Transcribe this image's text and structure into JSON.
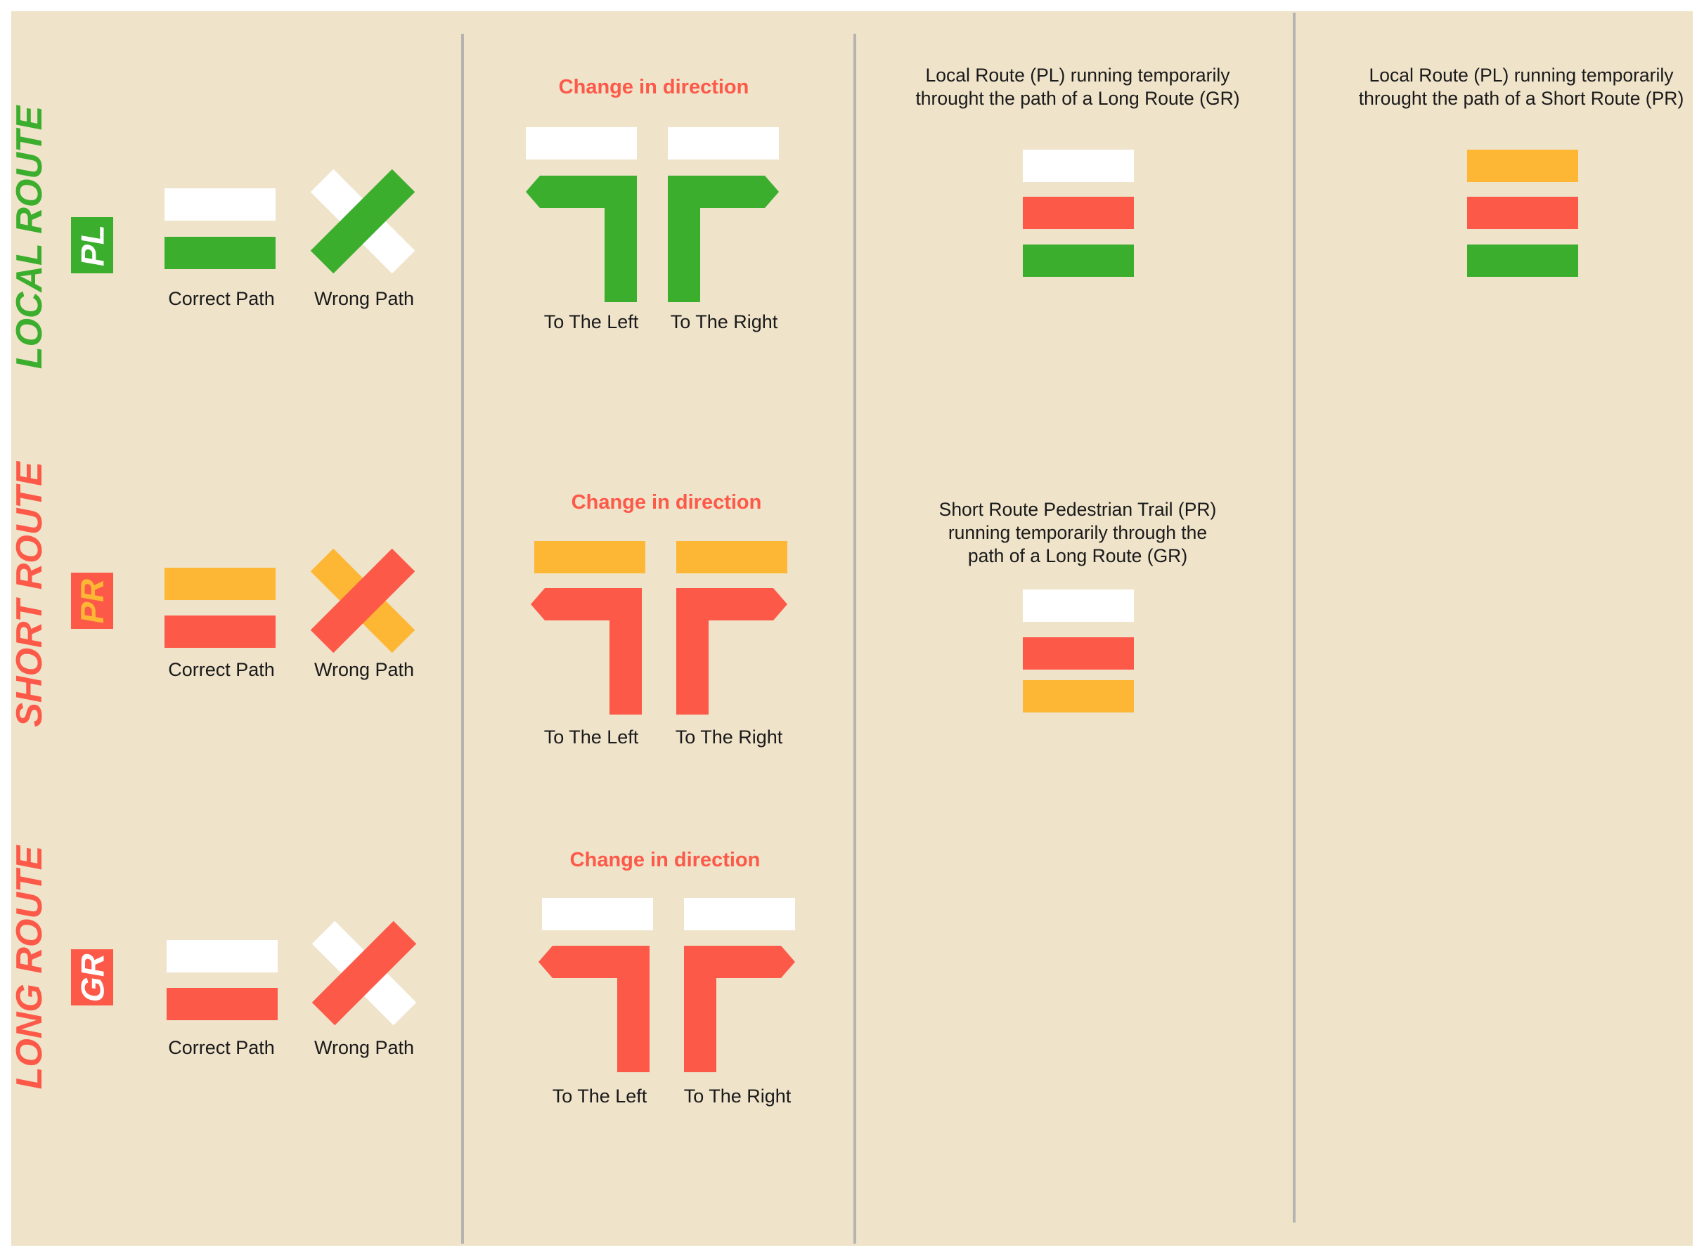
{
  "colors": {
    "background": "#efe3ca",
    "divider": "#b6b3b0",
    "white": "#ffffff",
    "green": "#3cae2e",
    "red": "#fd5949",
    "yellow": "#fdb734",
    "heading_red": "#fd5949"
  },
  "rows": [
    {
      "id": "local",
      "title": "LOCAL ROUTE",
      "title_color": "#3cae2e",
      "badge": "PL",
      "badge_bg": "#3cae2e",
      "badge_text_color": "#ffffff",
      "top_color": "#ffffff",
      "route_color": "#3cae2e",
      "correct_label": "Correct Path",
      "wrong_label": "Wrong Path",
      "direction_heading": "Change in direction",
      "left_label": "To The Left",
      "right_label": "To The Right"
    },
    {
      "id": "short",
      "title": "SHORT ROUTE",
      "title_color": "#fd5949",
      "badge": "PR",
      "badge_bg": "#fd5949",
      "badge_text_color": "#fdb734",
      "top_color": "#fdb734",
      "route_color": "#fd5949",
      "correct_label": "Correct Path",
      "wrong_label": "Wrong Path",
      "direction_heading": "Change in direction",
      "left_label": "To The Left",
      "right_label": "To The Right"
    },
    {
      "id": "long",
      "title": "LONG ROUTE",
      "title_color": "#fd5949",
      "badge": "GR",
      "badge_bg": "#fd5949",
      "badge_text_color": "#ffffff",
      "top_color": "#ffffff",
      "route_color": "#fd5949",
      "correct_label": "Correct Path",
      "wrong_label": "Wrong Path",
      "direction_heading": "Change in direction",
      "left_label": "To The Left",
      "right_label": "To The Right"
    }
  ],
  "combined": [
    {
      "lines": [
        "Local Route (PL) running temporarily",
        "throught the path of a Long Route (GR)"
      ],
      "stripes": [
        "#ffffff",
        "#fd5949",
        "#3cae2e"
      ]
    },
    {
      "lines": [
        "Local Route (PL) running temporarily",
        "throught the path of a Short Route (PR)"
      ],
      "stripes": [
        "#fdb734",
        "#fd5949",
        "#3cae2e"
      ]
    },
    {
      "lines": [
        "Short Route Pedestrian Trail (PR)",
        "running temporarily through the",
        "path of a Long Route (GR)"
      ],
      "stripes": [
        "#ffffff",
        "#fd5949",
        "#fdb734"
      ]
    }
  ]
}
